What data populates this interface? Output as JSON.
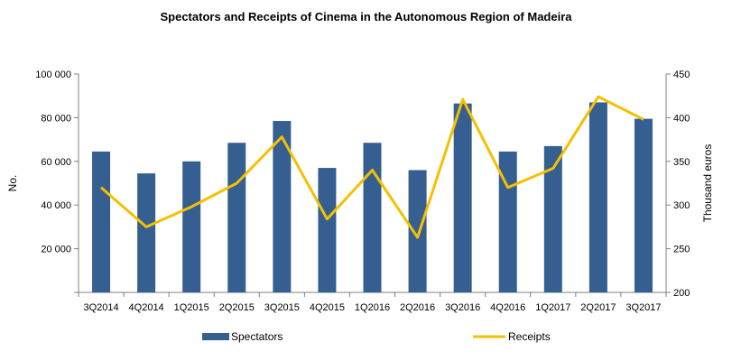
{
  "chart_data": {
    "type": "bar",
    "title": "Spectators and Receipts of Cinema in the Autonomous Region of Madeira",
    "categories": [
      "3Q2014",
      "4Q2014",
      "1Q2015",
      "2Q2015",
      "3Q2015",
      "4Q2015",
      "1Q2016",
      "2Q2016",
      "3Q2016",
      "4Q2016",
      "1Q2017",
      "2Q2017",
      "3Q2017"
    ],
    "series": [
      {
        "name": "Spectators",
        "type": "bar",
        "axis": "left",
        "color": "#365f91",
        "values": [
          64500,
          54500,
          60000,
          68500,
          78500,
          57000,
          68500,
          56000,
          86500,
          64500,
          67000,
          87000,
          79500
        ]
      },
      {
        "name": "Receipts",
        "type": "line",
        "axis": "right",
        "color": "#f5c000",
        "values": [
          320,
          275,
          298,
          325,
          378,
          284,
          340,
          263,
          421,
          320,
          342,
          424,
          398
        ]
      }
    ],
    "ylabel": "No.",
    "ylabel_right": "Thousand euros",
    "ylim": [
      0,
      100000
    ],
    "ylim_right": [
      200,
      450
    ],
    "yticks": [
      "",
      "20 000",
      "40 000",
      "60 000",
      "80 000",
      "100 000"
    ],
    "yticks_right": [
      "200",
      "250",
      "300",
      "350",
      "400",
      "450"
    ],
    "grid": false,
    "legend_position": "bottom"
  }
}
